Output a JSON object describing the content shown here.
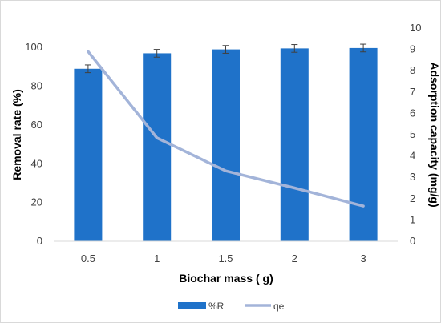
{
  "chart_data": {
    "type": "bar",
    "categories": [
      "0.5",
      "1",
      "1.5",
      "2",
      "3"
    ],
    "series": [
      {
        "name": "%R",
        "type": "bar",
        "axis": "left",
        "values": [
          89,
          97,
          99,
          99.5,
          99.7
        ],
        "error": [
          2,
          2,
          2,
          2,
          2
        ],
        "color": "#1f72c9"
      },
      {
        "name": "qe",
        "type": "line",
        "axis": "right",
        "values": [
          8.9,
          4.85,
          3.3,
          2.5,
          1.65
        ],
        "color": "#a3b4d9"
      }
    ],
    "xlabel": "Biochar mass ( g)",
    "ylabel": "Removal rate (%)",
    "y2label": "Adsorption capacity (mg/g)",
    "ylim": [
      0,
      110
    ],
    "y2lim": [
      0,
      10
    ],
    "yticks": [
      "0",
      "20",
      "40",
      "60",
      "80",
      "100"
    ],
    "y2ticks": [
      "0",
      "1",
      "2",
      "3",
      "4",
      "5",
      "6",
      "7",
      "8",
      "9",
      "10"
    ],
    "grid": false,
    "legend_position": "bottom"
  }
}
